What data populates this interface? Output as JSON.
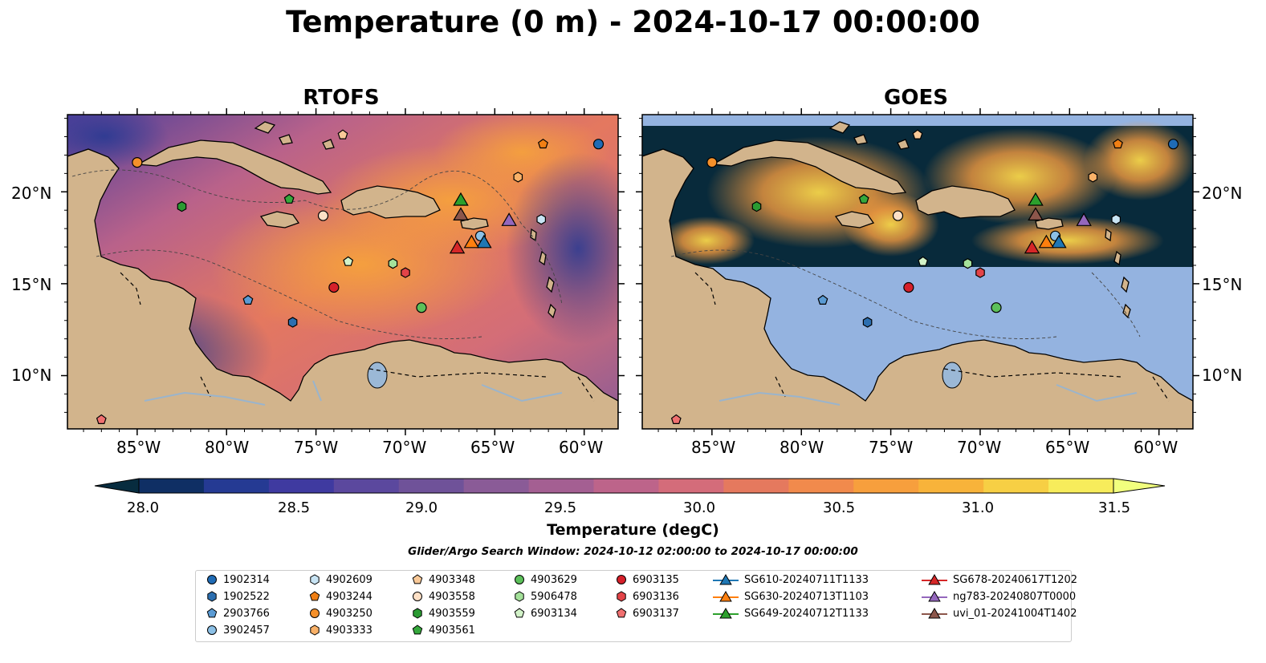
{
  "title": "Temperature (0 m) - 2024-10-17 00:00:00",
  "panels": [
    {
      "title": "RTOFS"
    },
    {
      "title": "GOES"
    }
  ],
  "lon_ticks": [
    "85°W",
    "80°W",
    "75°W",
    "70°W",
    "65°W",
    "60°W"
  ],
  "lat_ticks": [
    "20°N",
    "15°N",
    "10°N"
  ],
  "colorbar": {
    "label": "Temperature (degC)",
    "ticks": [
      "28.0",
      "28.5",
      "29.0",
      "29.5",
      "30.0",
      "30.5",
      "31.0",
      "31.5"
    ],
    "range": [
      28.0,
      31.5
    ],
    "extend": "both",
    "colors": [
      "#072c3f",
      "#0f2f64",
      "#253a93",
      "#3f3aa0",
      "#5b489e",
      "#6f5299",
      "#8a5b97",
      "#a45f92",
      "#bd648a",
      "#d46c7a",
      "#e5795e",
      "#f18a4c",
      "#f79f3d",
      "#f8b33a",
      "#f7cf44",
      "#f7ec5b",
      "#f1ff7e"
    ]
  },
  "search_window": "Glider/Argo Search Window: 2024-10-12 02:00:00 to 2024-10-17 00:00:00",
  "map_colors": {
    "land": "#d2b48c",
    "ocean_mask": "#94b3e0",
    "cloud": "#082a3b",
    "rivers": "#9ab4cc"
  },
  "legend": {
    "columns": [
      [
        {
          "label": "1902314",
          "marker": "circle",
          "color": "#1f6bb5"
        },
        {
          "label": "1902522",
          "marker": "hexagon",
          "color": "#2c6fb0"
        },
        {
          "label": "2903766",
          "marker": "pentagon",
          "color": "#5a9bd4"
        },
        {
          "label": "3902457",
          "marker": "circle",
          "color": "#8cc0e6"
        }
      ],
      [
        {
          "label": "4902609",
          "marker": "hexagon",
          "color": "#c8e4f4"
        },
        {
          "label": "4903244",
          "marker": "pentagon",
          "color": "#f07f14"
        },
        {
          "label": "4903250",
          "marker": "circle",
          "color": "#f5902a"
        },
        {
          "label": "4903333",
          "marker": "hexagon",
          "color": "#f9b168"
        }
      ],
      [
        {
          "label": "4903348",
          "marker": "pentagon",
          "color": "#f9c998"
        },
        {
          "label": "4903558",
          "marker": "circle",
          "color": "#fde0c6"
        },
        {
          "label": "4903559",
          "marker": "hexagon",
          "color": "#2a9a32"
        },
        {
          "label": "4903561",
          "marker": "pentagon",
          "color": "#35a83c"
        }
      ],
      [
        {
          "label": "4903629",
          "marker": "circle",
          "color": "#5cc05a"
        },
        {
          "label": "5906478",
          "marker": "hexagon",
          "color": "#a4e19a"
        },
        {
          "label": "6903134",
          "marker": "pentagon",
          "color": "#d2f2c8"
        }
      ],
      [
        {
          "label": "6903135",
          "marker": "circle",
          "color": "#d6202a"
        },
        {
          "label": "6903136",
          "marker": "hexagon",
          "color": "#e34448"
        },
        {
          "label": "6903137",
          "marker": "pentagon",
          "color": "#f07070"
        }
      ],
      [
        {
          "label": "SG610-20240711T1133",
          "marker": "triangle-line",
          "color": "#1f77b4"
        },
        {
          "label": "SG630-20240713T1103",
          "marker": "triangle-line",
          "color": "#ff7f0e"
        },
        {
          "label": "SG649-20240712T1133",
          "marker": "triangle-line",
          "color": "#2ca02c"
        }
      ],
      [
        {
          "label": "SG678-20240617T1202",
          "marker": "triangle-line",
          "color": "#d62728"
        },
        {
          "label": "ng783-20240807T0000",
          "marker": "triangle-line",
          "color": "#9467bd"
        },
        {
          "label": "uvi_01-20241004T1402",
          "marker": "triangle-line",
          "color": "#8c564b"
        }
      ]
    ]
  },
  "stations": [
    {
      "label": "1902314",
      "lon": -59.2,
      "lat": 22.6
    },
    {
      "label": "1902522",
      "lon": -76.3,
      "lat": 12.9
    },
    {
      "label": "2903766",
      "lon": -78.8,
      "lat": 14.1
    },
    {
      "label": "3902457",
      "lon": -65.8,
      "lat": 17.6
    },
    {
      "label": "4902609",
      "lon": -62.4,
      "lat": 18.5
    },
    {
      "label": "4903244",
      "lon": -62.3,
      "lat": 22.6
    },
    {
      "label": "4903250",
      "lon": -85.0,
      "lat": 21.6
    },
    {
      "label": "4903333",
      "lon": -63.7,
      "lat": 20.8
    },
    {
      "label": "4903348",
      "lon": -73.5,
      "lat": 23.1
    },
    {
      "label": "4903558",
      "lon": -74.6,
      "lat": 18.7
    },
    {
      "label": "4903559",
      "lon": -82.5,
      "lat": 19.2
    },
    {
      "label": "4903561",
      "lon": -76.5,
      "lat": 19.6
    },
    {
      "label": "4903629",
      "lon": -69.1,
      "lat": 13.7
    },
    {
      "label": "5906478",
      "lon": -70.7,
      "lat": 16.1
    },
    {
      "label": "6903134",
      "lon": -73.2,
      "lat": 16.2
    },
    {
      "label": "6903135",
      "lon": -74.0,
      "lat": 14.8
    },
    {
      "label": "6903136",
      "lon": -70.0,
      "lat": 15.6
    },
    {
      "label": "6903137",
      "lon": -87.0,
      "lat": 7.6
    }
  ],
  "gliders": [
    {
      "label": "SG610-20240711T1133",
      "lon": -65.6,
      "lat": 17.1
    },
    {
      "label": "SG630-20240713T1103",
      "lon": -66.3,
      "lat": 17.1
    },
    {
      "label": "SG649-20240712T1133",
      "lon": -66.9,
      "lat": 19.4
    },
    {
      "label": "SG678-20240617T1202",
      "lon": -67.1,
      "lat": 16.8
    },
    {
      "label": "ng783-20240807T0000",
      "lon": -64.2,
      "lat": 18.3
    },
    {
      "label": "uvi_01-20241004T1402",
      "lon": -66.9,
      "lat": 18.6
    }
  ]
}
